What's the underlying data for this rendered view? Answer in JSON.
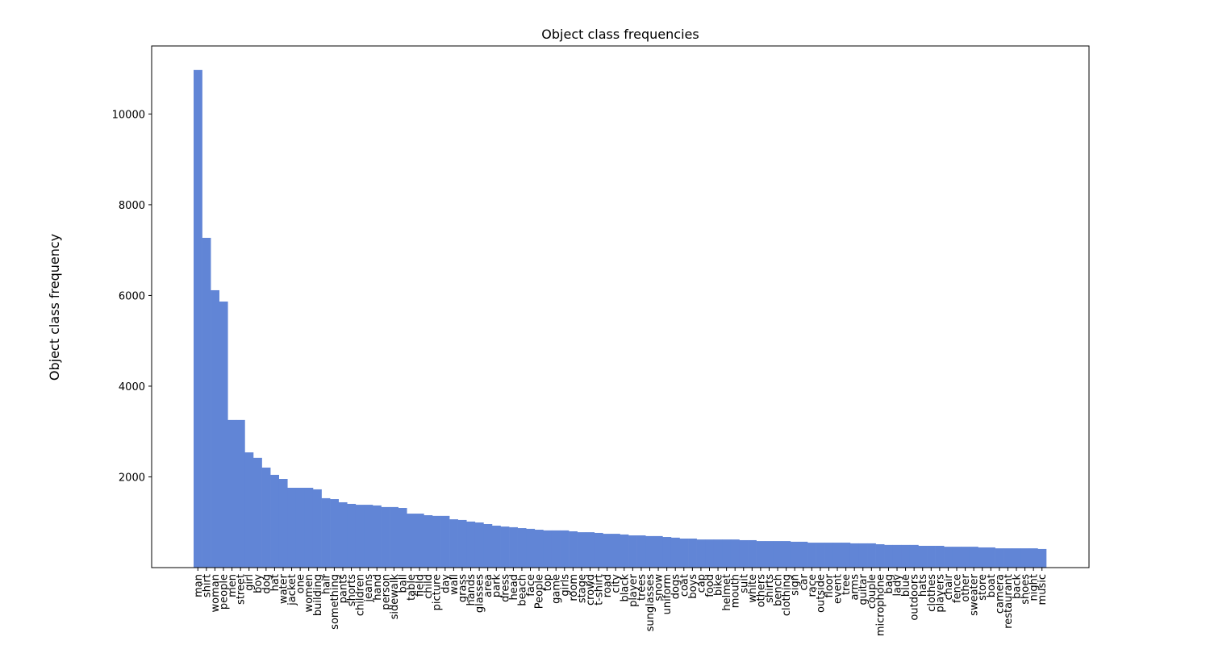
{
  "chart_data": {
    "type": "bar",
    "title": "Object class frequencies",
    "y_label": "Object class frequency",
    "categories": [
      "man",
      "shirt",
      "woman",
      "people",
      "men",
      "street",
      "girl",
      "boy",
      "dog",
      "hat",
      "water",
      "jacket",
      "one",
      "women",
      "building",
      "hair",
      "something",
      "pants",
      "shorts",
      "children",
      "jeans",
      "hand",
      "person",
      "sidewalk",
      "ball",
      "table",
      "field",
      "child",
      "picture",
      "day",
      "wall",
      "grass",
      "hands",
      "glasses",
      "area",
      "park",
      "dress",
      "head",
      "beach",
      "face",
      "People",
      "top",
      "game",
      "girls",
      "room",
      "stage",
      "crowd",
      "t-shirt",
      "road",
      "city",
      "black",
      "player",
      "trees",
      "sunglasses",
      "snow",
      "uniform",
      "dogs",
      "coat",
      "boys",
      "cap",
      "food",
      "bike",
      "helmet",
      "mouth",
      "suit",
      "white",
      "others",
      "shirts",
      "bench",
      "clothing",
      "sign",
      "car",
      "race",
      "outside",
      "floor",
      "event",
      "tree",
      "arms",
      "guitar",
      "couple",
      "microphone",
      "bag",
      "lady",
      "blue",
      "outdoors",
      "hats",
      "clothes",
      "players",
      "chair",
      "fence",
      "other",
      "sweater",
      "store",
      "boat",
      "camera",
      "restaurant",
      "back",
      "shoes",
      "night",
      "music"
    ],
    "values": [
      10970,
      7270,
      6115,
      5865,
      3255,
      3255,
      2540,
      2420,
      2205,
      2045,
      1955,
      1760,
      1760,
      1760,
      1725,
      1530,
      1510,
      1440,
      1405,
      1385,
      1385,
      1370,
      1335,
      1335,
      1315,
      1190,
      1190,
      1155,
      1140,
      1140,
      1065,
      1050,
      1015,
      995,
      960,
      925,
      905,
      890,
      870,
      855,
      835,
      820,
      820,
      820,
      800,
      780,
      780,
      765,
      745,
      745,
      730,
      710,
      710,
      695,
      695,
      675,
      660,
      640,
      640,
      620,
      620,
      620,
      620,
      620,
      605,
      605,
      585,
      585,
      585,
      585,
      570,
      570,
      550,
      550,
      550,
      550,
      550,
      535,
      535,
      535,
      515,
      500,
      500,
      500,
      500,
      480,
      480,
      480,
      460,
      460,
      460,
      460,
      445,
      445,
      425,
      425,
      425,
      425,
      425,
      410
    ],
    "color": "#6185d6",
    "ylim": [
      0,
      11500
    ],
    "yticks": [
      2000,
      4000,
      6000,
      8000,
      10000
    ],
    "grid": false
  }
}
